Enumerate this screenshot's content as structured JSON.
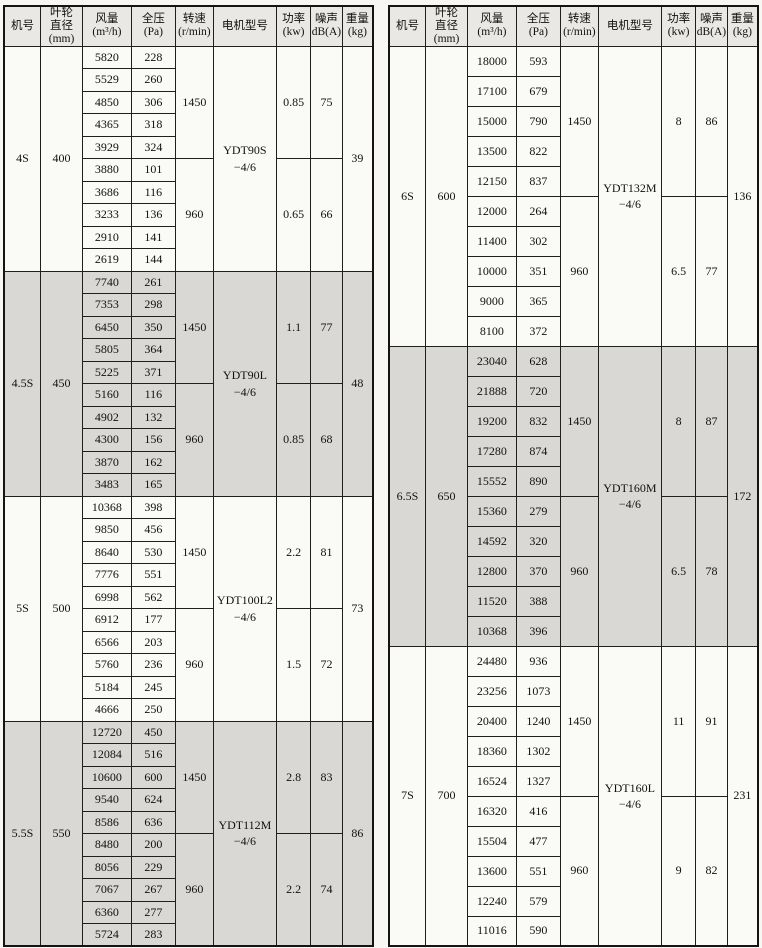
{
  "columns": [
    {
      "id": "model",
      "lines": [
        "机号"
      ]
    },
    {
      "id": "diameter",
      "lines": [
        "叶轮",
        "直径",
        "(mm)"
      ]
    },
    {
      "id": "airflow",
      "lines": [
        "风量",
        "(m³/h)"
      ]
    },
    {
      "id": "pressure",
      "lines": [
        "全压",
        "(Pa)"
      ]
    },
    {
      "id": "speed",
      "lines": [
        "转速",
        "(r/min)"
      ]
    },
    {
      "id": "motor",
      "lines": [
        "电机型号"
      ]
    },
    {
      "id": "power",
      "lines": [
        "功率",
        "(kw)"
      ]
    },
    {
      "id": "noise",
      "lines": [
        "噪声",
        "dB(A)"
      ]
    },
    {
      "id": "weight",
      "lines": [
        "重量",
        "(kg)"
      ]
    }
  ],
  "colors": {
    "header_bg": "#e9e8e4",
    "cell_bg": "#fafaf6",
    "shaded_bg": "#d9d8d4",
    "border": "#1f1f1f"
  },
  "tables": [
    {
      "id": "left",
      "sections": [
        {
          "model": "4S",
          "diameter": "400",
          "shaded": false,
          "rows": [
            [
              "5820",
              "228"
            ],
            [
              "5529",
              "260"
            ],
            [
              "4850",
              "306"
            ],
            [
              "4365",
              "318"
            ],
            [
              "3929",
              "324"
            ],
            [
              "3880",
              "101"
            ],
            [
              "3686",
              "116"
            ],
            [
              "3233",
              "136"
            ],
            [
              "2910",
              "141"
            ],
            [
              "2619",
              "144"
            ]
          ],
          "speed_groups": [
            {
              "speed": "1450",
              "power": "0.85",
              "noise": "75"
            },
            {
              "speed": "960",
              "power": "0.65",
              "noise": "66"
            }
          ],
          "motor_lines": [
            "YDT90S",
            "−4/6"
          ],
          "weight": "39"
        },
        {
          "model": "4.5S",
          "diameter": "450",
          "shaded": true,
          "rows": [
            [
              "7740",
              "261"
            ],
            [
              "7353",
              "298"
            ],
            [
              "6450",
              "350"
            ],
            [
              "5805",
              "364"
            ],
            [
              "5225",
              "371"
            ],
            [
              "5160",
              "116"
            ],
            [
              "4902",
              "132"
            ],
            [
              "4300",
              "156"
            ],
            [
              "3870",
              "162"
            ],
            [
              "3483",
              "165"
            ]
          ],
          "speed_groups": [
            {
              "speed": "1450",
              "power": "1.1",
              "noise": "77"
            },
            {
              "speed": "960",
              "power": "0.85",
              "noise": "68"
            }
          ],
          "motor_lines": [
            "YDT90L",
            "−4/6"
          ],
          "weight": "48"
        },
        {
          "model": "5S",
          "diameter": "500",
          "shaded": false,
          "rows": [
            [
              "10368",
              "398"
            ],
            [
              "9850",
              "456"
            ],
            [
              "8640",
              "530"
            ],
            [
              "7776",
              "551"
            ],
            [
              "6998",
              "562"
            ],
            [
              "6912",
              "177"
            ],
            [
              "6566",
              "203"
            ],
            [
              "5760",
              "236"
            ],
            [
              "5184",
              "245"
            ],
            [
              "4666",
              "250"
            ]
          ],
          "speed_groups": [
            {
              "speed": "1450",
              "power": "2.2",
              "noise": "81"
            },
            {
              "speed": "960",
              "power": "1.5",
              "noise": "72"
            }
          ],
          "motor_lines": [
            "YDT100L2",
            "−4/6"
          ],
          "weight": "73"
        },
        {
          "model": "5.5S",
          "diameter": "550",
          "shaded": true,
          "rows": [
            [
              "12720",
              "450"
            ],
            [
              "12084",
              "516"
            ],
            [
              "10600",
              "600"
            ],
            [
              "9540",
              "624"
            ],
            [
              "8586",
              "636"
            ],
            [
              "8480",
              "200"
            ],
            [
              "8056",
              "229"
            ],
            [
              "7067",
              "267"
            ],
            [
              "6360",
              "277"
            ],
            [
              "5724",
              "283"
            ]
          ],
          "speed_groups": [
            {
              "speed": "1450",
              "power": "2.8",
              "noise": "83"
            },
            {
              "speed": "960",
              "power": "2.2",
              "noise": "74"
            }
          ],
          "motor_lines": [
            "YDT112M",
            "−4/6"
          ],
          "weight": "86"
        }
      ]
    },
    {
      "id": "right",
      "sections": [
        {
          "model": "6S",
          "diameter": "600",
          "shaded": false,
          "rows": [
            [
              "18000",
              "593"
            ],
            [
              "17100",
              "679"
            ],
            [
              "15000",
              "790"
            ],
            [
              "13500",
              "822"
            ],
            [
              "12150",
              "837"
            ],
            [
              "12000",
              "264"
            ],
            [
              "11400",
              "302"
            ],
            [
              "10000",
              "351"
            ],
            [
              "9000",
              "365"
            ],
            [
              "8100",
              "372"
            ]
          ],
          "speed_groups": [
            {
              "speed": "1450",
              "power": "8",
              "noise": "86"
            },
            {
              "speed": "960",
              "power": "6.5",
              "noise": "77"
            }
          ],
          "motor_lines": [
            "YDT132M",
            "−4/6"
          ],
          "weight": "136"
        },
        {
          "model": "6.5S",
          "diameter": "650",
          "shaded": true,
          "rows": [
            [
              "23040",
              "628"
            ],
            [
              "21888",
              "720"
            ],
            [
              "19200",
              "832"
            ],
            [
              "17280",
              "874"
            ],
            [
              "15552",
              "890"
            ],
            [
              "15360",
              "279"
            ],
            [
              "14592",
              "320"
            ],
            [
              "12800",
              "370"
            ],
            [
              "11520",
              "388"
            ],
            [
              "10368",
              "396"
            ]
          ],
          "speed_groups": [
            {
              "speed": "1450",
              "power": "8",
              "noise": "87"
            },
            {
              "speed": "960",
              "power": "6.5",
              "noise": "78"
            }
          ],
          "motor_lines": [
            "YDT160M",
            "−4/6"
          ],
          "weight": "172"
        },
        {
          "model": "7S",
          "diameter": "700",
          "shaded": false,
          "rows": [
            [
              "24480",
              "936"
            ],
            [
              "23256",
              "1073"
            ],
            [
              "20400",
              "1240"
            ],
            [
              "18360",
              "1302"
            ],
            [
              "16524",
              "1327"
            ],
            [
              "16320",
              "416"
            ],
            [
              "15504",
              "477"
            ],
            [
              "13600",
              "551"
            ],
            [
              "12240",
              "579"
            ],
            [
              "11016",
              "590"
            ]
          ],
          "speed_groups": [
            {
              "speed": "1450",
              "power": "11",
              "noise": "91"
            },
            {
              "speed": "960",
              "power": "9",
              "noise": "82"
            }
          ],
          "motor_lines": [
            "YDT160L",
            "−4/6"
          ],
          "weight": "231"
        }
      ]
    }
  ]
}
